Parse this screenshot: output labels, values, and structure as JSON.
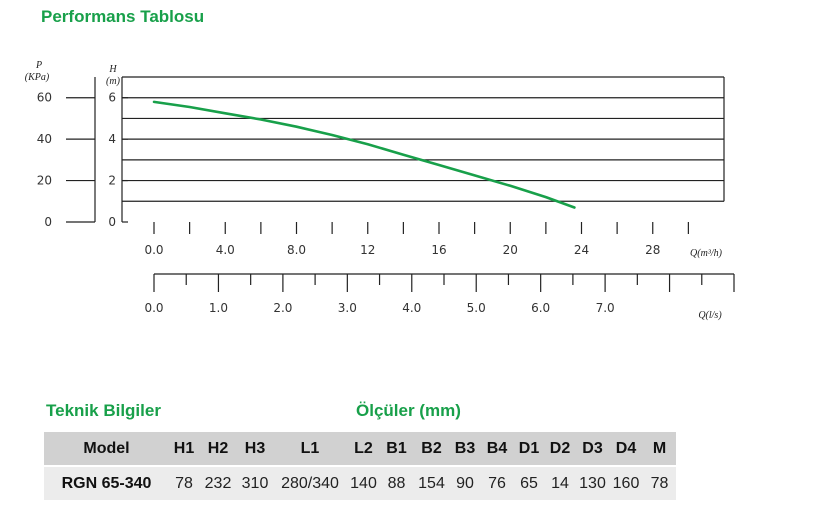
{
  "page": {
    "title": "Performans Tablosu",
    "tech_title": "Teknik Bilgiler",
    "dims_title": "Ölçüler (mm)"
  },
  "chart_data": {
    "type": "line",
    "p_axis": {
      "title": "P",
      "unit": "(KPa)",
      "ticks": [
        "0",
        "20",
        "40",
        "60"
      ]
    },
    "h_axis": {
      "title": "H",
      "unit": "(m)",
      "ticks": [
        "0",
        "2",
        "4",
        "6"
      ],
      "ylim": [
        0,
        7
      ]
    },
    "q_axis": {
      "title": "Q(m³/h)",
      "ticks": [
        "0.0",
        "4.0",
        "8.0",
        "12",
        "16",
        "20",
        "24",
        "28"
      ],
      "xlim": [
        0,
        32
      ]
    },
    "q2_axis": {
      "title": "Q(l/s)",
      "ticks": [
        "0.0",
        "1.0",
        "2.0",
        "3.0",
        "4.0",
        "5.0",
        "6.0",
        "7.0"
      ],
      "xlim": [
        0,
        9
      ]
    },
    "grid": true,
    "series": [
      {
        "color": "#18a04a",
        "x": [
          0,
          2,
          4,
          6,
          8,
          10,
          12,
          14,
          16,
          18,
          20,
          22,
          23.6
        ],
        "y": [
          5.8,
          5.55,
          5.25,
          4.95,
          4.6,
          4.2,
          3.75,
          3.25,
          2.75,
          2.25,
          1.75,
          1.2,
          0.7
        ]
      }
    ]
  },
  "table": {
    "headers": [
      "Model",
      "H1",
      "H2",
      "H3",
      "L1",
      "L2",
      "B1",
      "B2",
      "B3",
      "B4",
      "D1",
      "D2",
      "D3",
      "D4",
      "M"
    ],
    "rows": [
      [
        "RGN 65-340",
        "78",
        "232",
        "310",
        "280/340",
        "140",
        "88",
        "154",
        "90",
        "76",
        "65",
        "14",
        "130",
        "160",
        "78"
      ]
    ]
  }
}
